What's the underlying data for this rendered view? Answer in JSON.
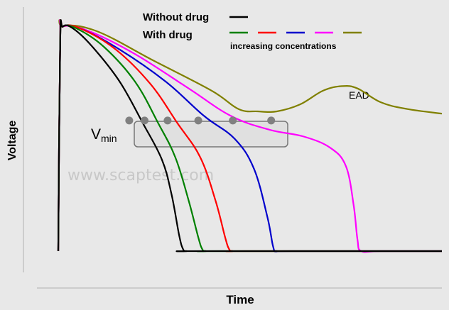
{
  "chart_data": {
    "type": "line",
    "title": "",
    "xlabel": "Time",
    "ylabel": "Voltage",
    "xlim": [
      0,
      100
    ],
    "ylim": [
      0,
      100
    ],
    "grid": false,
    "legend": {
      "placement": "top-center",
      "entries": [
        {
          "label": "Without drug",
          "colors": [
            "#000000"
          ]
        },
        {
          "label": "With drug",
          "colors": [
            "#008000",
            "#ff0000",
            "#0000cc",
            "#ff00ff",
            "#808000"
          ]
        }
      ],
      "note": "increasing concentrations"
    },
    "annotations": {
      "ead": "EAD",
      "vmin_main": "V",
      "vmin_sub": "min"
    },
    "watermark": "www.scaptest.com",
    "series": [
      {
        "color": "#000000",
        "x": [
          0,
          0.5,
          1.2,
          4,
          9,
          16,
          22,
          27,
          29.5,
          31.5,
          32.5,
          33.5,
          37,
          100
        ],
        "y": [
          0,
          91,
          98,
          97,
          89,
          74,
          56,
          40,
          25,
          7,
          1,
          0,
          0,
          0
        ]
      },
      {
        "color": "#008000",
        "x": [
          0,
          0.5,
          1.2,
          5,
          12,
          20,
          26,
          30.5,
          34,
          36.5,
          37.5,
          38.5,
          42,
          100
        ],
        "y": [
          0,
          91,
          98,
          97,
          89,
          74,
          56,
          41,
          22,
          6,
          1,
          0,
          0,
          0
        ]
      },
      {
        "color": "#ff0000",
        "x": [
          0,
          0.5,
          1.2,
          6,
          15,
          24,
          31,
          37,
          41,
          43.5,
          44.5,
          45.5,
          49,
          100
        ],
        "y": [
          0,
          91,
          98,
          97,
          88,
          73,
          56,
          41,
          22,
          6,
          1,
          0,
          0,
          0
        ]
      },
      {
        "color": "#0000cc",
        "x": [
          0,
          0.5,
          1.2,
          6,
          16,
          28,
          38,
          46,
          51,
          54.5,
          56,
          57,
          61,
          100
        ],
        "y": [
          0,
          91,
          98,
          97,
          88,
          74,
          59,
          49,
          36,
          15,
          2,
          0,
          0,
          0
        ]
      },
      {
        "color": "#ff00ff",
        "x": [
          0,
          0.5,
          1.2,
          8,
          20,
          34,
          45,
          55,
          64,
          71,
          75,
          77,
          78,
          79,
          84,
          100
        ],
        "y": [
          0,
          91,
          98,
          96,
          86,
          71,
          59,
          53,
          50,
          45,
          37,
          20,
          5,
          0,
          0,
          0
        ]
      },
      {
        "color": "#808000",
        "x": [
          0,
          0.5,
          1.2,
          10,
          25,
          40,
          47,
          52,
          57,
          63,
          69,
          74,
          78,
          84,
          91,
          100
        ],
        "y": [
          0,
          91,
          98,
          96,
          83,
          70,
          62,
          61,
          61,
          64,
          70,
          72,
          71,
          65,
          62,
          60
        ]
      }
    ],
    "vmin_points": {
      "x": [
        18.5,
        22.5,
        28.5,
        36.5,
        45.5,
        55.5
      ],
      "y": [
        57,
        57,
        57,
        57,
        57,
        57
      ]
    }
  }
}
